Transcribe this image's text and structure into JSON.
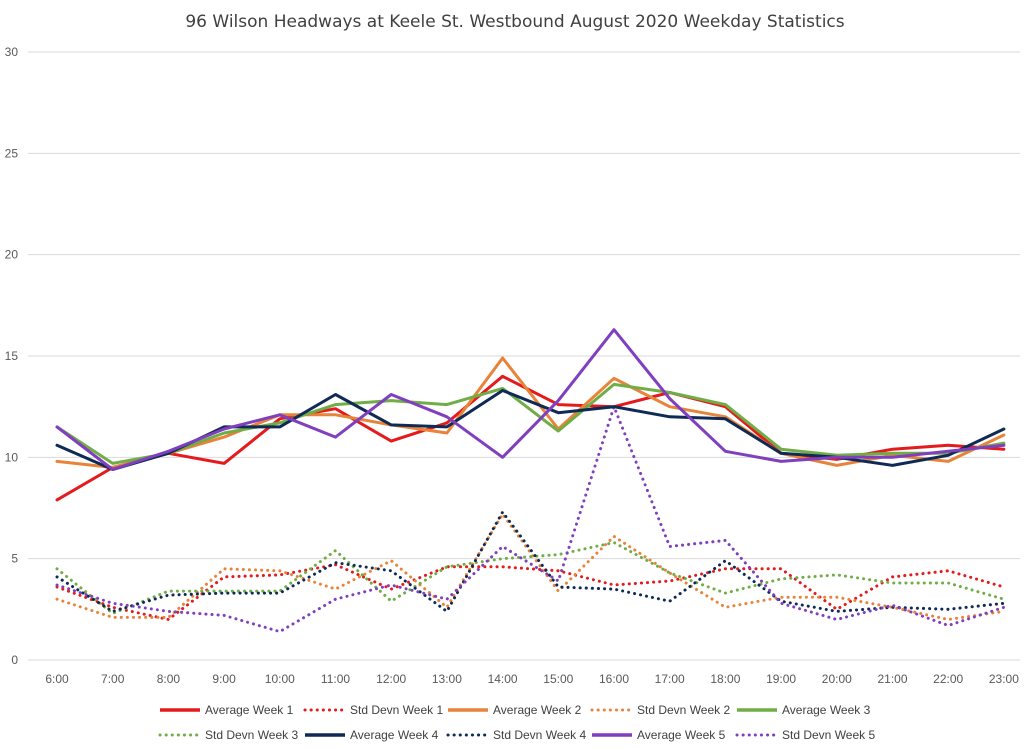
{
  "chart_data": {
    "type": "line",
    "title": "96 Wilson Headways at Keele St. Westbound August 2020 Weekday Statistics",
    "xlabel": "",
    "ylabel": "",
    "ylim": [
      0,
      30
    ],
    "yticks": [
      "0",
      "5",
      "10",
      "15",
      "20",
      "25",
      "30"
    ],
    "categories": [
      "6:00",
      "7:00",
      "8:00",
      "9:00",
      "10:00",
      "11:00",
      "12:00",
      "13:00",
      "14:00",
      "15:00",
      "16:00",
      "17:00",
      "18:00",
      "19:00",
      "20:00",
      "21:00",
      "22:00",
      "23:00"
    ],
    "grid": "horizontal",
    "legend_position": "bottom",
    "series": [
      {
        "name": "Average Week 1",
        "style": "solid",
        "color": "#e41a1c",
        "values": [
          7.9,
          9.5,
          10.2,
          9.7,
          11.9,
          12.4,
          10.8,
          11.7,
          14.0,
          12.6,
          12.5,
          13.2,
          12.5,
          10.2,
          9.9,
          10.4,
          10.6,
          10.4
        ]
      },
      {
        "name": "Std Devn Week 1",
        "style": "dotted",
        "color": "#e41a1c",
        "values": [
          3.6,
          2.6,
          2.0,
          4.1,
          4.2,
          4.7,
          3.5,
          4.6,
          4.6,
          4.4,
          3.7,
          3.9,
          4.5,
          4.5,
          2.5,
          4.1,
          4.4,
          3.6
        ]
      },
      {
        "name": "Average Week 2",
        "style": "solid",
        "color": "#e8833a",
        "values": [
          9.8,
          9.5,
          10.2,
          11.0,
          12.1,
          12.1,
          11.6,
          11.2,
          14.9,
          11.4,
          13.9,
          12.5,
          12.0,
          10.2,
          9.6,
          10.1,
          9.8,
          11.1
        ]
      },
      {
        "name": "Std Devn Week 2",
        "style": "dotted",
        "color": "#e8833a",
        "values": [
          3.0,
          2.1,
          2.1,
          4.5,
          4.4,
          3.5,
          4.9,
          2.6,
          7.2,
          3.4,
          6.1,
          4.3,
          2.6,
          3.1,
          3.1,
          2.6,
          2.0,
          2.4
        ]
      },
      {
        "name": "Average Week 3",
        "style": "solid",
        "color": "#70ad47",
        "values": [
          11.5,
          9.7,
          10.2,
          11.2,
          11.7,
          12.6,
          12.8,
          12.6,
          13.4,
          11.3,
          13.6,
          13.2,
          12.6,
          10.4,
          10.1,
          10.2,
          10.2,
          10.7
        ]
      },
      {
        "name": "Std Devn Week 3",
        "style": "dotted",
        "color": "#70ad47",
        "values": [
          4.5,
          2.3,
          3.4,
          3.4,
          3.4,
          5.4,
          2.9,
          4.6,
          5.0,
          5.2,
          5.8,
          4.3,
          3.3,
          4.0,
          4.2,
          3.8,
          3.8,
          3.0
        ]
      },
      {
        "name": "Average Week 4",
        "style": "solid",
        "color": "#0f2a55",
        "values": [
          10.6,
          9.4,
          10.2,
          11.5,
          11.5,
          13.1,
          11.6,
          11.5,
          13.3,
          12.2,
          12.5,
          12.0,
          11.9,
          10.2,
          10.0,
          9.6,
          10.1,
          11.4
        ]
      },
      {
        "name": "Std Devn Week 4",
        "style": "dotted",
        "color": "#0f2a55",
        "values": [
          4.1,
          2.4,
          3.2,
          3.3,
          3.3,
          4.8,
          4.4,
          2.4,
          7.3,
          3.6,
          3.5,
          2.9,
          4.9,
          2.9,
          2.4,
          2.6,
          2.5,
          2.8
        ]
      },
      {
        "name": "Average Week 5",
        "style": "solid",
        "color": "#7f3fbf",
        "values": [
          11.5,
          9.4,
          10.3,
          11.4,
          12.1,
          11.0,
          13.1,
          12.0,
          10.0,
          12.8,
          16.3,
          12.9,
          10.3,
          9.8,
          10.0,
          10.0,
          10.3,
          10.6
        ]
      },
      {
        "name": "Std Devn Week 5",
        "style": "dotted",
        "color": "#7f3fbf",
        "values": [
          3.7,
          2.8,
          2.4,
          2.2,
          1.4,
          3.0,
          3.7,
          3.0,
          5.6,
          3.9,
          12.5,
          5.6,
          5.9,
          2.8,
          2.0,
          2.7,
          1.7,
          2.6
        ]
      }
    ]
  }
}
